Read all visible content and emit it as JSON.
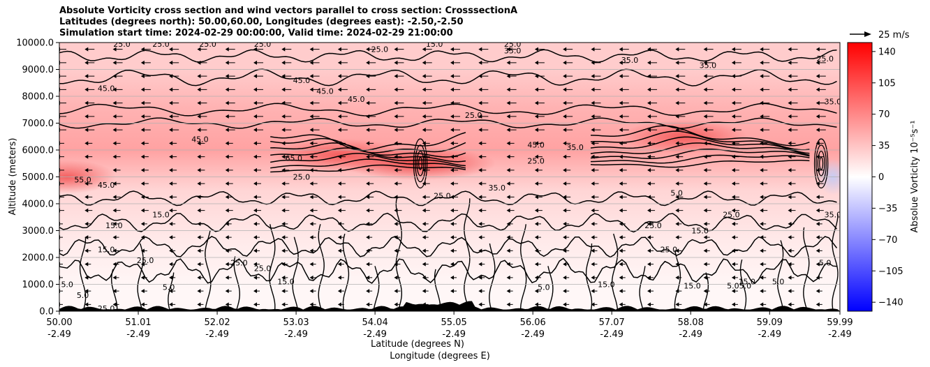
{
  "title_lines": [
    "Absolute Vorticity cross section and wind vectors parallel to cross section: CrosssectionA",
    "Latitudes (degrees north): 50.00,60.00, Longitudes (degrees east): -2.50,-2.50",
    "Simulation start time: 2024-02-29 00:00:00, Valid time: 2024-02-29 21:00:00"
  ],
  "chart_data": {
    "type": "heatmap",
    "title": "Absolute Vorticity cross section and wind vectors parallel to cross section: CrosssectionA",
    "ylabel": "Altitude (meters)",
    "xlabel_lines": [
      "Latitude (degrees N)",
      "Longitude (degrees E)"
    ],
    "ylim": [
      0,
      10000
    ],
    "xlim": [
      50.0,
      59.99
    ],
    "y_ticks": [
      0,
      1000,
      2000,
      3000,
      4000,
      5000,
      6000,
      7000,
      8000,
      9000,
      10000
    ],
    "y_tick_labels": [
      "0.0",
      "1000.0",
      "2000.0",
      "3000.0",
      "4000.0",
      "5000.0",
      "6000.0",
      "7000.0",
      "8000.0",
      "9000.0",
      "10000.0"
    ],
    "x_ticks": [
      50.0,
      51.01,
      52.02,
      53.03,
      54.04,
      55.05,
      56.06,
      57.07,
      58.08,
      59.09,
      59.99
    ],
    "x_tick_labels": [
      {
        "lat": "50.00",
        "lon": "-2.49"
      },
      {
        "lat": "51.01",
        "lon": "-2.49"
      },
      {
        "lat": "52.02",
        "lon": "-2.49"
      },
      {
        "lat": "53.03",
        "lon": "-2.49"
      },
      {
        "lat": "54.04",
        "lon": "-2.49"
      },
      {
        "lat": "55.05",
        "lon": "-2.49"
      },
      {
        "lat": "56.06",
        "lon": "-2.49"
      },
      {
        "lat": "57.07",
        "lon": "-2.49"
      },
      {
        "lat": "58.08",
        "lon": "-2.49"
      },
      {
        "lat": "59.09",
        "lon": "-2.49"
      },
      {
        "lat": "59.99",
        "lon": "-2.49"
      }
    ],
    "grid": "horizontal",
    "colorbar": {
      "label": "Absolue Vorticity 10⁻⁵s⁻¹",
      "min": -150,
      "max": 150,
      "ticks": [
        140,
        105,
        70,
        35,
        0,
        -35,
        -70,
        -105,
        -140
      ],
      "tick_labels": [
        "140",
        "105",
        "70",
        "35",
        "0",
        "−35",
        "−70",
        "−105",
        "−140"
      ],
      "colormap": "bwr"
    },
    "quiver_key": {
      "label": "25 m/s",
      "speed": 25,
      "units": "m/s"
    },
    "vorticity_profile": [
      {
        "altitude": 9000,
        "value": 30
      },
      {
        "altitude": 7600,
        "value": 45
      },
      {
        "altitude": 6000,
        "value": 55
      },
      {
        "altitude": 4500,
        "value": 25
      },
      {
        "altitude": 2500,
        "value": 12
      },
      {
        "altitude": 800,
        "value": 5
      }
    ],
    "vorticity_maxima": [
      {
        "lat": 53.6,
        "altitude": 5800,
        "value": 95
      },
      {
        "lat": 54.6,
        "altitude": 5500,
        "value": 110
      },
      {
        "lat": 58.0,
        "altitude": 6500,
        "value": 90
      },
      {
        "lat": 50.1,
        "altitude": 5000,
        "value": 70
      }
    ],
    "vorticity_minima": [
      {
        "lat": 59.9,
        "altitude": 5000,
        "value": -20
      }
    ],
    "contour_levels": [
      5.0,
      15.0,
      25.0,
      35.0,
      45.0,
      55.0,
      65.0
    ],
    "contour_labels": [
      {
        "text": "25.0",
        "lat": 50.8,
        "altitude": 9950
      },
      {
        "text": "25.0",
        "lat": 51.3,
        "altitude": 9950
      },
      {
        "text": "25.0",
        "lat": 51.9,
        "altitude": 9950
      },
      {
        "text": "25.0",
        "lat": 52.6,
        "altitude": 9950
      },
      {
        "text": "25.0",
        "lat": 54.1,
        "altitude": 9750
      },
      {
        "text": "35.0",
        "lat": 55.8,
        "altitude": 9700
      },
      {
        "text": "15.0",
        "lat": 54.8,
        "altitude": 9950
      },
      {
        "text": "25.0",
        "lat": 55.8,
        "altitude": 9950
      },
      {
        "text": "35.0",
        "lat": 57.3,
        "altitude": 9350
      },
      {
        "text": "35.0",
        "lat": 58.3,
        "altitude": 9150
      },
      {
        "text": "25.0",
        "lat": 59.8,
        "altitude": 9400
      },
      {
        "text": "45.0",
        "lat": 50.6,
        "altitude": 8300
      },
      {
        "text": "45.0",
        "lat": 53.1,
        "altitude": 8600
      },
      {
        "text": "45.0",
        "lat": 53.4,
        "altitude": 8200
      },
      {
        "text": "45.0",
        "lat": 53.8,
        "altitude": 7900
      },
      {
        "text": "25.0",
        "lat": 55.3,
        "altitude": 7300
      },
      {
        "text": "35.0",
        "lat": 59.9,
        "altitude": 7800
      },
      {
        "text": "45.0",
        "lat": 51.8,
        "altitude": 6400
      },
      {
        "text": "45.0",
        "lat": 56.1,
        "altitude": 6200
      },
      {
        "text": "35.0",
        "lat": 56.6,
        "altitude": 6100
      },
      {
        "text": "25.0",
        "lat": 56.1,
        "altitude": 5600
      },
      {
        "text": "55.0",
        "lat": 50.3,
        "altitude": 4900
      },
      {
        "text": "45.0",
        "lat": 50.6,
        "altitude": 4700
      },
      {
        "text": "65.0",
        "lat": 53.0,
        "altitude": 5700
      },
      {
        "text": "25.0",
        "lat": 53.1,
        "altitude": 5000
      },
      {
        "text": "25.0",
        "lat": 54.9,
        "altitude": 4300
      },
      {
        "text": "35.0",
        "lat": 55.6,
        "altitude": 4600
      },
      {
        "text": "15.0",
        "lat": 50.7,
        "altitude": 3200
      },
      {
        "text": "15.0",
        "lat": 51.3,
        "altitude": 3600
      },
      {
        "text": "25.0",
        "lat": 58.6,
        "altitude": 3600
      },
      {
        "text": "35.0",
        "lat": 59.9,
        "altitude": 3600
      },
      {
        "text": "25.0",
        "lat": 57.6,
        "altitude": 3200
      },
      {
        "text": "5.0",
        "lat": 57.9,
        "altitude": 4400
      },
      {
        "text": "15.0",
        "lat": 58.2,
        "altitude": 3000
      },
      {
        "text": "15.0",
        "lat": 50.6,
        "altitude": 2300
      },
      {
        "text": "25.0",
        "lat": 51.1,
        "altitude": 1900
      },
      {
        "text": "25.0",
        "lat": 52.3,
        "altitude": 1800
      },
      {
        "text": "25.0",
        "lat": 52.6,
        "altitude": 1600
      },
      {
        "text": "25.0",
        "lat": 57.8,
        "altitude": 2300
      },
      {
        "text": "5.0",
        "lat": 59.8,
        "altitude": 1800
      },
      {
        "text": "5.0",
        "lat": 50.1,
        "altitude": 1000
      },
      {
        "text": "5.0",
        "lat": 50.3,
        "altitude": 600
      },
      {
        "text": "5.0",
        "lat": 51.4,
        "altitude": 900
      },
      {
        "text": "15.0",
        "lat": 52.9,
        "altitude": 1100
      },
      {
        "text": "15.0",
        "lat": 57.0,
        "altitude": 1000
      },
      {
        "text": "15.0",
        "lat": 58.1,
        "altitude": 950
      },
      {
        "text": "5.05.0",
        "lat": 58.7,
        "altitude": 950
      },
      {
        "text": "15.0",
        "lat": 58.8,
        "altitude": 1100
      },
      {
        "text": "5.0",
        "lat": 56.2,
        "altitude": 900
      },
      {
        "text": "5.0",
        "lat": 59.2,
        "altitude": 1100
      },
      {
        "text": "25.0",
        "lat": 50.6,
        "altitude": 100
      }
    ]
  }
}
